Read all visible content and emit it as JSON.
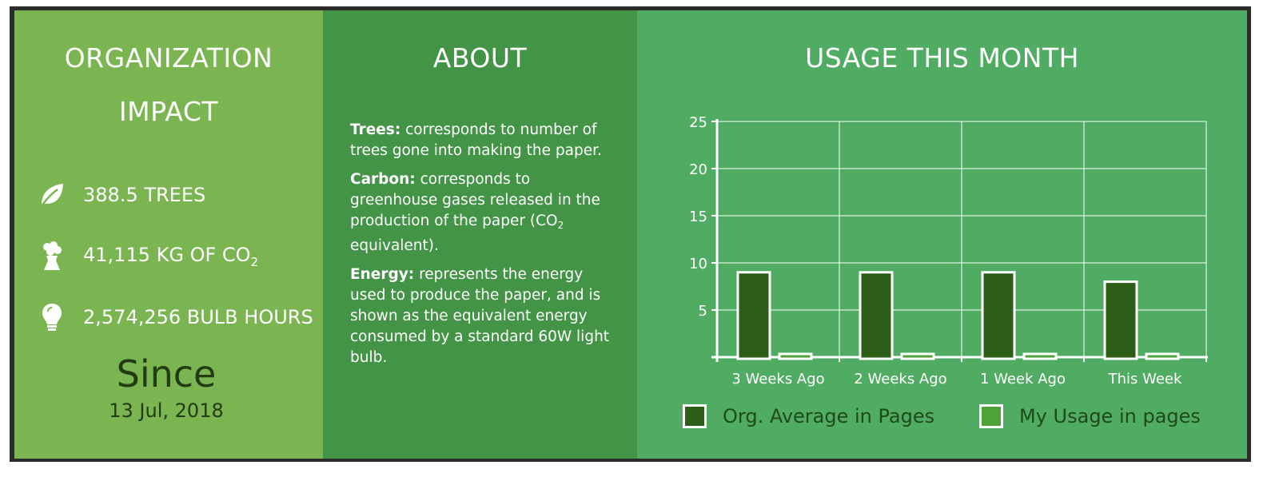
{
  "impact": {
    "title_line1": "ORGANIZATION",
    "title_line2": "IMPACT",
    "stats": [
      {
        "icon": "leaf-icon",
        "text": "388.5 TREES"
      },
      {
        "icon": "factory-icon",
        "text": "41,115 KG OF CO",
        "sub": "2"
      },
      {
        "icon": "lightbulb-icon",
        "text": "2,574,256 BULB HOURS"
      }
    ],
    "since_label": "Since",
    "since_date": "13 Jul, 2018"
  },
  "about": {
    "title": "ABOUT",
    "items": [
      {
        "term": "Trees:",
        "desc": " corresponds to number of trees gone into making the paper."
      },
      {
        "term": "Carbon:",
        "desc_before": " corresponds to greenhouse gases released in the production of the paper (CO",
        "sub": "2",
        "desc_after": " equivalent)."
      },
      {
        "term": "Energy:",
        "desc": " represents the energy used to produce the paper, and is shown as the equivalent energy consumed by a standard 60W light bulb."
      }
    ]
  },
  "usage": {
    "title": "USAGE THIS MONTH",
    "legend": [
      {
        "label": "Org. Average in Pages",
        "color": "#2c5e17"
      },
      {
        "label": "My Usage in pages",
        "color": "#4fa237"
      }
    ]
  },
  "chart_data": {
    "type": "bar",
    "categories": [
      "3 Weeks Ago",
      "2 Weeks Ago",
      "1 Week Ago",
      "This Week"
    ],
    "series": [
      {
        "name": "Org. Average in Pages",
        "values": [
          9,
          9,
          9,
          8
        ],
        "color": "#2c5e17"
      },
      {
        "name": "My Usage in pages",
        "values": [
          0,
          0,
          0,
          0
        ],
        "color": "#4fa237"
      }
    ],
    "yticks": [
      5,
      10,
      15,
      20,
      25
    ],
    "ylim": [
      0,
      25
    ],
    "grid": true,
    "legend": "bottom"
  }
}
